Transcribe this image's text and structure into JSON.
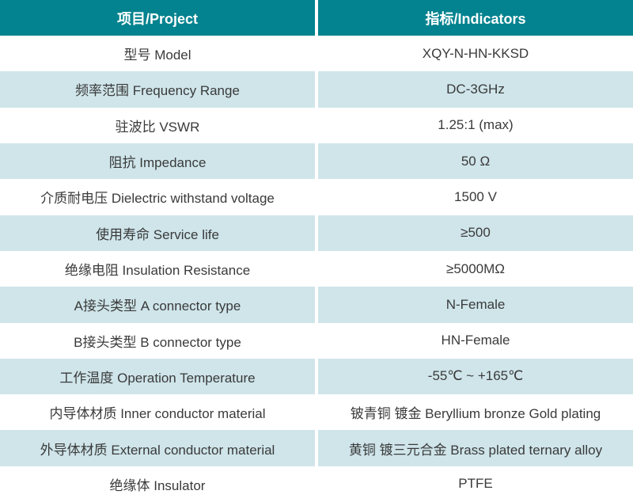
{
  "theme": {
    "header_bg": "#03838f",
    "header_text": "#ffffff",
    "row_bg": "#ffffff",
    "row_alt_bg": "#cfe5ea",
    "text_color": "#3a3a3a",
    "divider": "#ffffff"
  },
  "table": {
    "headers": {
      "project": "项目/Project",
      "indicators": "指标/Indicators"
    },
    "rows": [
      {
        "project": "型号 Model",
        "indicator": "XQY-N-HN-KKSD"
      },
      {
        "project": "频率范围 Frequency Range",
        "indicator": "DC-3GHz"
      },
      {
        "project": "驻波比 VSWR",
        "indicator": "1.25:1 (max)"
      },
      {
        "project": "阻抗 Impedance",
        "indicator": "50 Ω"
      },
      {
        "project": "介质耐电压 Dielectric withstand voltage",
        "indicator": "1500 V"
      },
      {
        "project": "使用寿命 Service life",
        "indicator": "≥500"
      },
      {
        "project": "绝缘电阻 Insulation Resistance",
        "indicator": "≥5000MΩ"
      },
      {
        "project": "A接头类型 A connector type",
        "indicator": "N-Female"
      },
      {
        "project": "B接头类型 B connector type",
        "indicator": "HN-Female"
      },
      {
        "project": "工作温度 Operation Temperature",
        "indicator": "-55℃ ~ +165℃"
      },
      {
        "project": "内导体材质 Inner conductor material",
        "indicator": "铍青铜 镀金 Beryllium bronze Gold plating"
      },
      {
        "project": "外导体材质 External conductor material",
        "indicator": "黄铜 镀三元合金 Brass plated ternary alloy"
      },
      {
        "project": "绝缘体 Insulator",
        "indicator": "PTFE"
      }
    ]
  }
}
